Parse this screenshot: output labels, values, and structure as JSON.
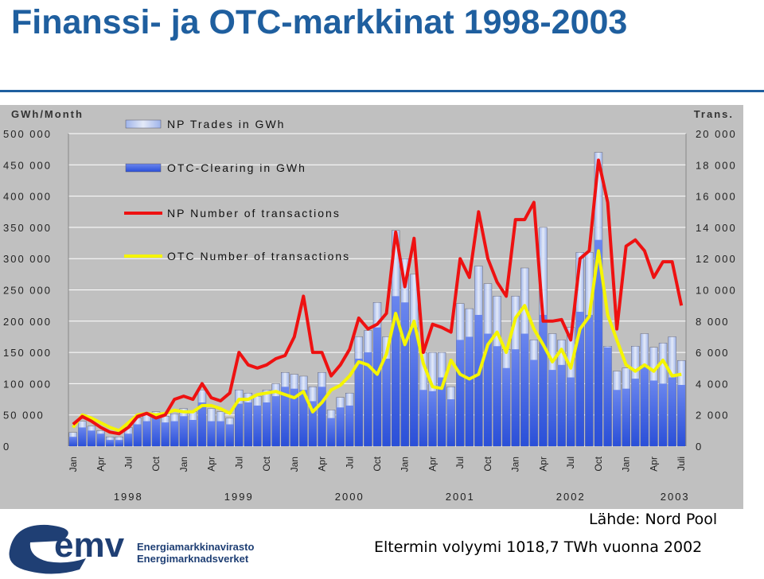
{
  "page": {
    "title": "Finanssi- ja OTC-markkinat 1998-2003",
    "source": "Lähde: Nord Pool",
    "volume_note": "Eltermin volyymi 1018,7 TWh vuonna 2002",
    "logo_text": "emv",
    "logo_name_fi": "Energiamarkkinavirasto",
    "logo_name_sv": "Energimarknadsverket"
  },
  "colors": {
    "title": "#1f5f9f",
    "plot_bg": "#c0c0c0",
    "np_trades_bar": "#e4eaf8",
    "otc_clearing_bar": "#2a4fd8",
    "np_line": "#ee1111",
    "otc_line": "#f5f500",
    "logo": "#1f3f74"
  },
  "chart_data": {
    "type": "bar",
    "left_axis_title": "GWh/Month",
    "right_axis_title": "Trans.",
    "ylim_left": [
      0,
      500000
    ],
    "ylim_right": [
      0,
      20000
    ],
    "left_ticks": [
      "0",
      "50 000",
      "100 000",
      "150 000",
      "200 000",
      "250 000",
      "300 000",
      "350 000",
      "400 000",
      "450 000",
      "500 000"
    ],
    "right_ticks": [
      "0",
      "2 000",
      "4 000",
      "6 000",
      "8 000",
      "10 000",
      "12 000",
      "14 000",
      "16 000",
      "18 000",
      "20 000"
    ],
    "x_tick_labels": [
      "Jan",
      "Apr",
      "Jul",
      "Oct",
      "Jan",
      "Apr",
      "Jul",
      "Oct",
      "Jan",
      "Apr",
      "Jul",
      "Oct",
      "Jan",
      "Apr",
      "Jul",
      "Oct",
      "Jan",
      "Apr",
      "Jul",
      "Oct",
      "Jan",
      "Apr",
      "Juli"
    ],
    "years": [
      "1998",
      "1999",
      "2000",
      "2001",
      "2002",
      "2003"
    ],
    "legend": [
      "NP Trades in GWh",
      "OTC-Clearing in GWh",
      "NP Number of transactions",
      "OTC Number of transactions"
    ],
    "legend_position": "top-left",
    "grid": true,
    "series": [
      {
        "name": "NP Trades in GWh",
        "type": "bar",
        "axis": "left",
        "values": [
          22000,
          40000,
          32000,
          25000,
          15000,
          15000,
          30000,
          45000,
          50000,
          55000,
          48000,
          52000,
          60000,
          55000,
          90000,
          60000,
          55000,
          45000,
          90000,
          85000,
          80000,
          90000,
          100000,
          118000,
          115000,
          112000,
          95000,
          118000,
          58000,
          78000,
          85000,
          175000,
          185000,
          230000,
          175000,
          345000,
          300000,
          275000,
          150000,
          150000,
          150000,
          95000,
          228000,
          220000,
          288000,
          260000,
          240000,
          155000,
          240000,
          285000,
          170000,
          350000,
          180000,
          170000,
          190000,
          310000,
          310000,
          470000,
          160000,
          120000,
          125000,
          160000,
          180000,
          158000,
          165000,
          175000,
          137000
        ]
      },
      {
        "name": "OTC-Clearing in GWh",
        "type": "bar",
        "axis": "left",
        "values": [
          15000,
          30000,
          25000,
          20000,
          10000,
          10000,
          20000,
          35000,
          40000,
          45000,
          38000,
          40000,
          48000,
          42000,
          70000,
          40000,
          40000,
          35000,
          68000,
          70000,
          65000,
          70000,
          80000,
          95000,
          92000,
          90000,
          72000,
          95000,
          45000,
          62000,
          65000,
          140000,
          150000,
          190000,
          140000,
          240000,
          230000,
          190000,
          90000,
          88000,
          110000,
          75000,
          170000,
          175000,
          210000,
          180000,
          160000,
          125000,
          155000,
          180000,
          138000,
          210000,
          122000,
          130000,
          110000,
          215000,
          210000,
          330000,
          158000,
          90000,
          92000,
          108000,
          130000,
          105000,
          100000,
          110000,
          98000
        ]
      },
      {
        "name": "NP Number of transactions",
        "type": "line",
        "axis": "right",
        "values": [
          1400,
          1900,
          1600,
          1200,
          900,
          800,
          1200,
          1900,
          2100,
          1800,
          2000,
          3000,
          3200,
          3000,
          4000,
          3100,
          2900,
          3400,
          6000,
          5200,
          5000,
          5200,
          5600,
          5800,
          7000,
          9600,
          6000,
          6000,
          4500,
          5200,
          6200,
          8200,
          7500,
          7800,
          8500,
          13700,
          10200,
          13300,
          6000,
          7800,
          7600,
          7300,
          12000,
          10800,
          15000,
          12000,
          10500,
          9600,
          14500,
          14500,
          15600,
          8000,
          8000,
          8100,
          6800,
          12000,
          12500,
          18300,
          15600,
          7500,
          12800,
          13200,
          12500,
          10800,
          11800,
          11800,
          9000
        ]
      },
      {
        "name": "OTC Number of transactions",
        "type": "line",
        "axis": "right",
        "values": [
          1200,
          2000,
          1800,
          1500,
          1200,
          1000,
          1500,
          2000,
          2100,
          2000,
          2100,
          2300,
          2200,
          2200,
          2600,
          2600,
          2400,
          2100,
          3000,
          3000,
          3300,
          3400,
          3500,
          3300,
          3100,
          3500,
          2200,
          2800,
          3600,
          3900,
          4500,
          5400,
          5200,
          4600,
          5900,
          8500,
          6500,
          8000,
          5300,
          3800,
          3700,
          5500,
          4600,
          4300,
          4600,
          6500,
          7300,
          6000,
          8200,
          9000,
          7500,
          6500,
          5400,
          6200,
          5000,
          7500,
          8300,
          12500,
          8400,
          6800,
          5200,
          4800,
          5200,
          4800,
          5500,
          4500,
          4600
        ]
      }
    ]
  }
}
